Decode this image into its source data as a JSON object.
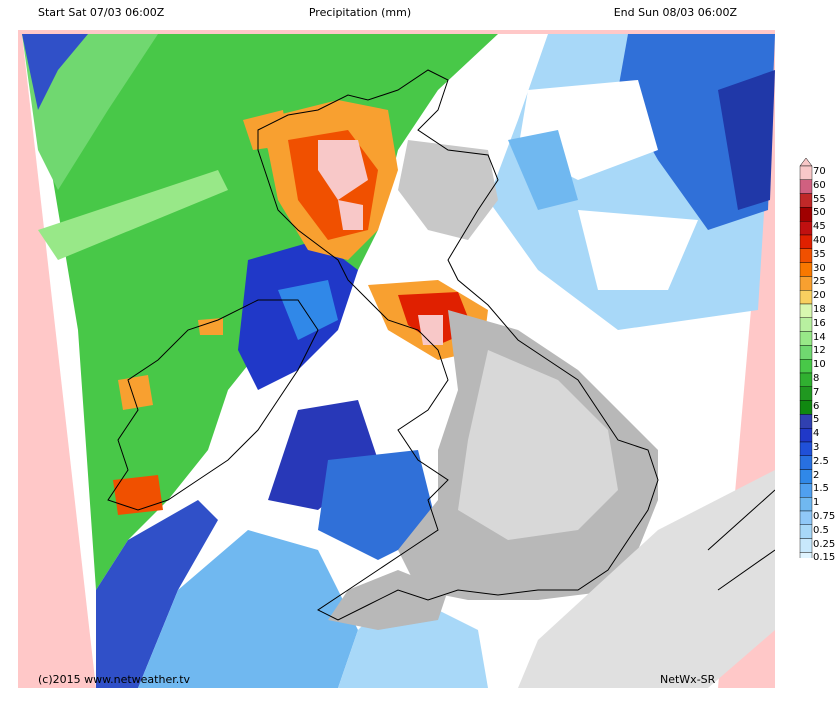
{
  "header": {
    "start": "Start Sat 07/03 06:00Z",
    "title": "Precipitation (mm)",
    "end": "End Sun 08/03 06:00Z"
  },
  "footer": {
    "copyright": "(c)2015 www.netweather.tv",
    "model": "NetWx-SR"
  },
  "legend": {
    "levels": [
      "70",
      "60",
      "55",
      "50",
      "45",
      "40",
      "35",
      "30",
      "25",
      "20",
      "18",
      "16",
      "14",
      "12",
      "10",
      "8",
      "7",
      "6",
      "5",
      "4",
      "3",
      "2.5",
      "2",
      "1.5",
      "1",
      "0.75",
      "0.5",
      "0.25",
      "0.15"
    ],
    "colors": [
      "#f8c8c8",
      "#d06080",
      "#c02828",
      "#a00000",
      "#c01010",
      "#e02000",
      "#f05000",
      "#f87800",
      "#f8a030",
      "#f8d060",
      "#d8f8b0",
      "#b8f0a0",
      "#98e888",
      "#70d870",
      "#48c848",
      "#30b030",
      "#209820",
      "#108810",
      "#3040b0",
      "#2038c8",
      "#2050d8",
      "#2870e0",
      "#3088e8",
      "#50a0f0",
      "#70b8f0",
      "#90c8f8",
      "#a8d8f8",
      "#c8e8fc",
      "#e0f4ff"
    ],
    "outside_color": "#ffc8c8"
  }
}
